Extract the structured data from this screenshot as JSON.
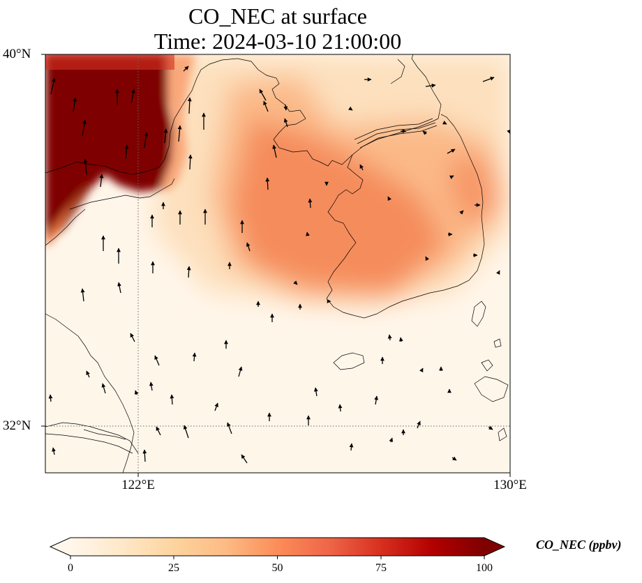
{
  "figure": {
    "title_line1": "CO_NEC at surface",
    "title_line2": "Time: 2024-03-10 21:00:00"
  },
  "map": {
    "variable": "CO_NEC",
    "level": "surface",
    "extent": {
      "lon_min": 120.0,
      "lon_max": 130.0,
      "lat_min": 31.0,
      "lat_max": 40.0
    },
    "lat_ticks": [
      {
        "value": 32,
        "label": "32°N"
      },
      {
        "value": 40,
        "label": "40°N"
      }
    ],
    "lon_ticks": [
      {
        "value": 122,
        "label": "122°E"
      },
      {
        "value": 130,
        "label": "130°E"
      }
    ],
    "gridlines": "dotted gray",
    "wind_vectors": "black arrows, mostly northward in the west, northwestward in the south"
  },
  "chart_data": {
    "type": "heatmap",
    "title": "CO_NEC at surface",
    "subtitle": "Time: 2024-03-10 21:00:00",
    "colormap": "OrRd",
    "colorbar": {
      "label": "CO_NEC (ppbv)",
      "min": 0,
      "max": 100,
      "extend": "both",
      "ticks": [
        0,
        25,
        50,
        75,
        100
      ],
      "tick_labels": [
        "0",
        "25",
        "50",
        "75",
        "100"
      ]
    },
    "approx_concentration_features": [
      {
        "region": "northwest corner (Bohai / Liaodong coast)",
        "lon_range": [
          120.0,
          122.7
        ],
        "lat_range": [
          35.5,
          40.0
        ],
        "value_ppbv": 100
      },
      {
        "region": "central Yellow Sea plume",
        "lon_range": [
          124.0,
          127.0
        ],
        "lat_range": [
          34.5,
          38.5
        ],
        "value_ppbv": 55
      },
      {
        "region": "western Korean peninsula",
        "lon_range": [
          126.0,
          128.5
        ],
        "lat_range": [
          34.5,
          36.5
        ],
        "value_ppbv": 55
      },
      {
        "region": "southern ocean / East China Sea",
        "lon_range": [
          120.0,
          130.0
        ],
        "lat_range": [
          31.0,
          34.0
        ],
        "value_ppbv": 5
      }
    ]
  },
  "colors": {
    "cmap_low": "#fff7ec",
    "cmap_25": "#fdd49e",
    "cmap_50": "#fc8d59",
    "cmap_75": "#d7301f",
    "cmap_high": "#7f0000"
  }
}
